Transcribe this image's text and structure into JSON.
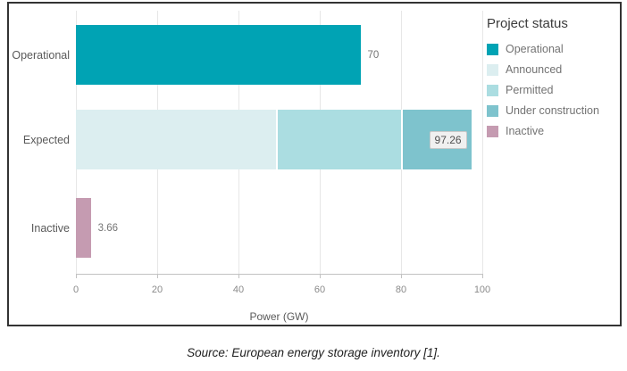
{
  "chart_data": {
    "type": "bar",
    "orientation": "horizontal",
    "stacked": true,
    "xlabel": "Power (GW)",
    "xlim": [
      0,
      100
    ],
    "x_ticks": [
      0,
      20,
      40,
      60,
      80,
      100
    ],
    "grid": true,
    "categories": [
      "Operational",
      "Expected",
      "Inactive"
    ],
    "rows": [
      {
        "category": "Operational",
        "total": 70,
        "label": "70",
        "label_style": "plain",
        "segments": [
          {
            "status": "Operational",
            "value": 70
          }
        ]
      },
      {
        "category": "Expected",
        "total": 97.26,
        "label": "97.26",
        "label_style": "boxed",
        "segments": [
          {
            "status": "Announced",
            "value": 49.6,
            "estimated": true
          },
          {
            "status": "Permitted",
            "value": 30.9,
            "estimated": true
          },
          {
            "status": "Under construction",
            "value": 16.76,
            "estimated": true
          }
        ]
      },
      {
        "category": "Inactive",
        "total": 3.66,
        "label": "3.66",
        "label_style": "plain",
        "segments": [
          {
            "status": "Inactive",
            "value": 3.66
          }
        ]
      }
    ],
    "legend": {
      "title": "Project status",
      "position": "top-right",
      "entries": [
        "Operational",
        "Announced",
        "Permitted",
        "Under construction",
        "Inactive"
      ]
    },
    "colors": {
      "Operational": "#00a3b4",
      "Announced": "#dceef0",
      "Permitted": "#abdde1",
      "Under construction": "#7ec3cd",
      "Inactive": "#c59bb1",
      "grid": "#e7e7e7",
      "axis": "#c2c2c2",
      "border": "#333333"
    }
  },
  "caption": "Source: European energy storage inventory [1]."
}
